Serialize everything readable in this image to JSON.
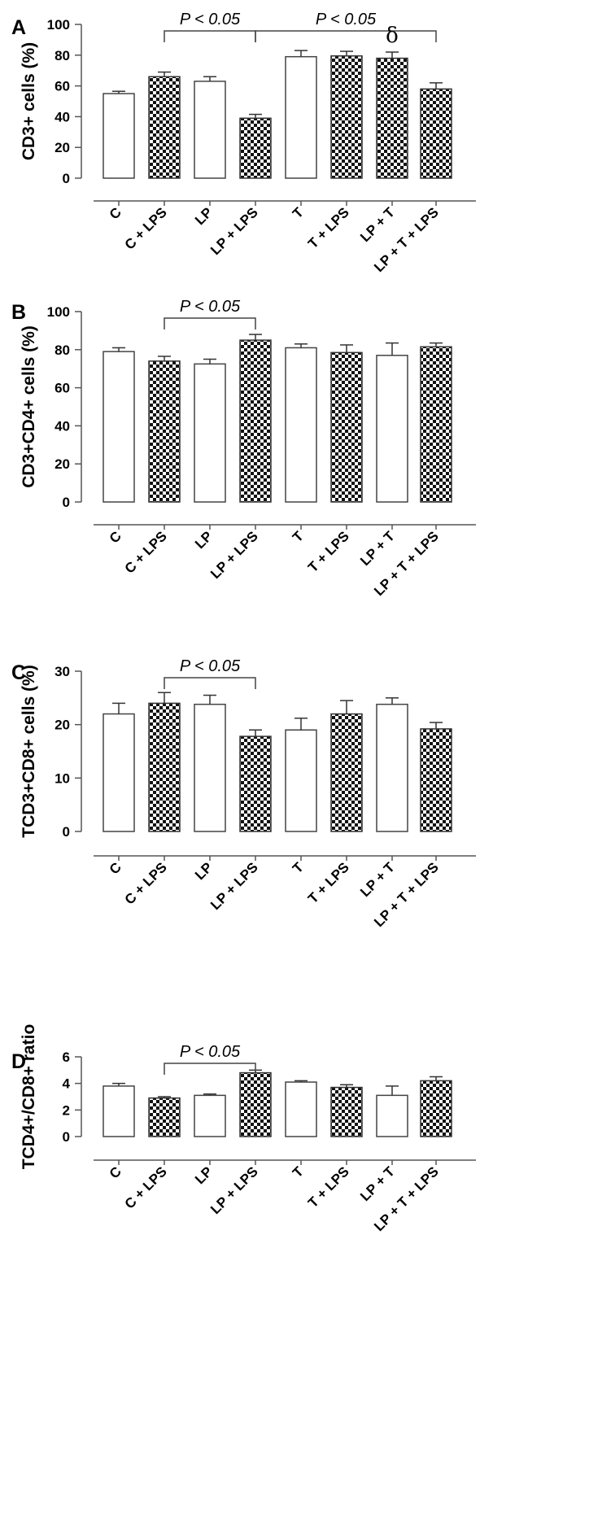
{
  "figure": {
    "chart_data": [
      {
        "type": "bar",
        "panel": "A",
        "ylabel": "CD3+ cells (%)",
        "ylim": [
          0,
          100
        ],
        "yticks": [
          0,
          20,
          40,
          60,
          80,
          100
        ],
        "categories": [
          "C",
          "C + LPS",
          "LP",
          "LP + LPS",
          "T",
          "T + LPS",
          "LP + T",
          "LP + T + LPS"
        ],
        "values": [
          55,
          66,
          63,
          39,
          79,
          79.5,
          78,
          58
        ],
        "errors": [
          1.5,
          3,
          3,
          2.5,
          4,
          3,
          4,
          4
        ],
        "fills": [
          "white",
          "checkered",
          "white",
          "checkered",
          "white",
          "checkered",
          "checkered",
          "checkered"
        ],
        "significance": [
          {
            "label": "P < 0.05",
            "from": 1,
            "to": 3
          },
          {
            "label": "P < 0.05",
            "from": 3,
            "to": 7
          }
        ],
        "annotations": [
          {
            "text": "δ",
            "category": 6
          }
        ]
      },
      {
        "type": "bar",
        "panel": "B",
        "ylabel": "CD3+CD4+ cells (%)",
        "ylim": [
          0,
          100
        ],
        "yticks": [
          0,
          20,
          40,
          60,
          80,
          100
        ],
        "categories": [
          "C",
          "C + LPS",
          "LP",
          "LP + LPS",
          "T",
          "T + LPS",
          "LP + T",
          "LP + T + LPS"
        ],
        "values": [
          79,
          74,
          72.5,
          85,
          81,
          78.5,
          77,
          81.5
        ],
        "errors": [
          2,
          2.5,
          2.5,
          3,
          2,
          4,
          6.5,
          2
        ],
        "fills": [
          "white",
          "checkered",
          "white",
          "checkered",
          "white",
          "checkered",
          "white",
          "checkered"
        ],
        "significance": [
          {
            "label": "P < 0.05",
            "from": 1,
            "to": 3
          }
        ],
        "annotations": []
      },
      {
        "type": "bar",
        "panel": "C",
        "ylabel": "TCD3+CD8+ cells (%)",
        "ylim": [
          0,
          30
        ],
        "yticks": [
          0,
          10,
          20,
          30
        ],
        "categories": [
          "C",
          "C + LPS",
          "LP",
          "LP + LPS",
          "T",
          "T + LPS",
          "LP + T",
          "LP + T + LPS"
        ],
        "values": [
          22,
          24,
          23.8,
          17.8,
          19,
          22,
          23.8,
          19.2
        ],
        "errors": [
          2,
          2,
          1.7,
          1.2,
          2.2,
          2.5,
          1.2,
          1.2
        ],
        "fills": [
          "white",
          "checkered",
          "white",
          "checkered",
          "white",
          "checkered",
          "white",
          "checkered"
        ],
        "significance": [
          {
            "label": "P < 0.05",
            "from": 1,
            "to": 3
          }
        ],
        "annotations": []
      },
      {
        "type": "bar",
        "panel": "D",
        "ylabel": "TCD4+/CD8+ ratio",
        "ylim": [
          0,
          6
        ],
        "yticks": [
          0,
          2,
          4,
          6
        ],
        "categories": [
          "C",
          "C + LPS",
          "LP",
          "LP + LPS",
          "T",
          "T + LPS",
          "LP + T",
          "LP + T + LPS"
        ],
        "values": [
          3.8,
          2.9,
          3.1,
          4.8,
          4.1,
          3.7,
          3.1,
          4.2
        ],
        "errors": [
          0.2,
          0.1,
          0.1,
          0.2,
          0.1,
          0.2,
          0.7,
          0.3
        ],
        "fills": [
          "white",
          "checkered",
          "white",
          "checkered",
          "white",
          "checkered",
          "white",
          "checkered"
        ],
        "significance": [
          {
            "label": "P < 0.05",
            "from": 1,
            "to": 3
          }
        ],
        "annotations": []
      }
    ]
  }
}
